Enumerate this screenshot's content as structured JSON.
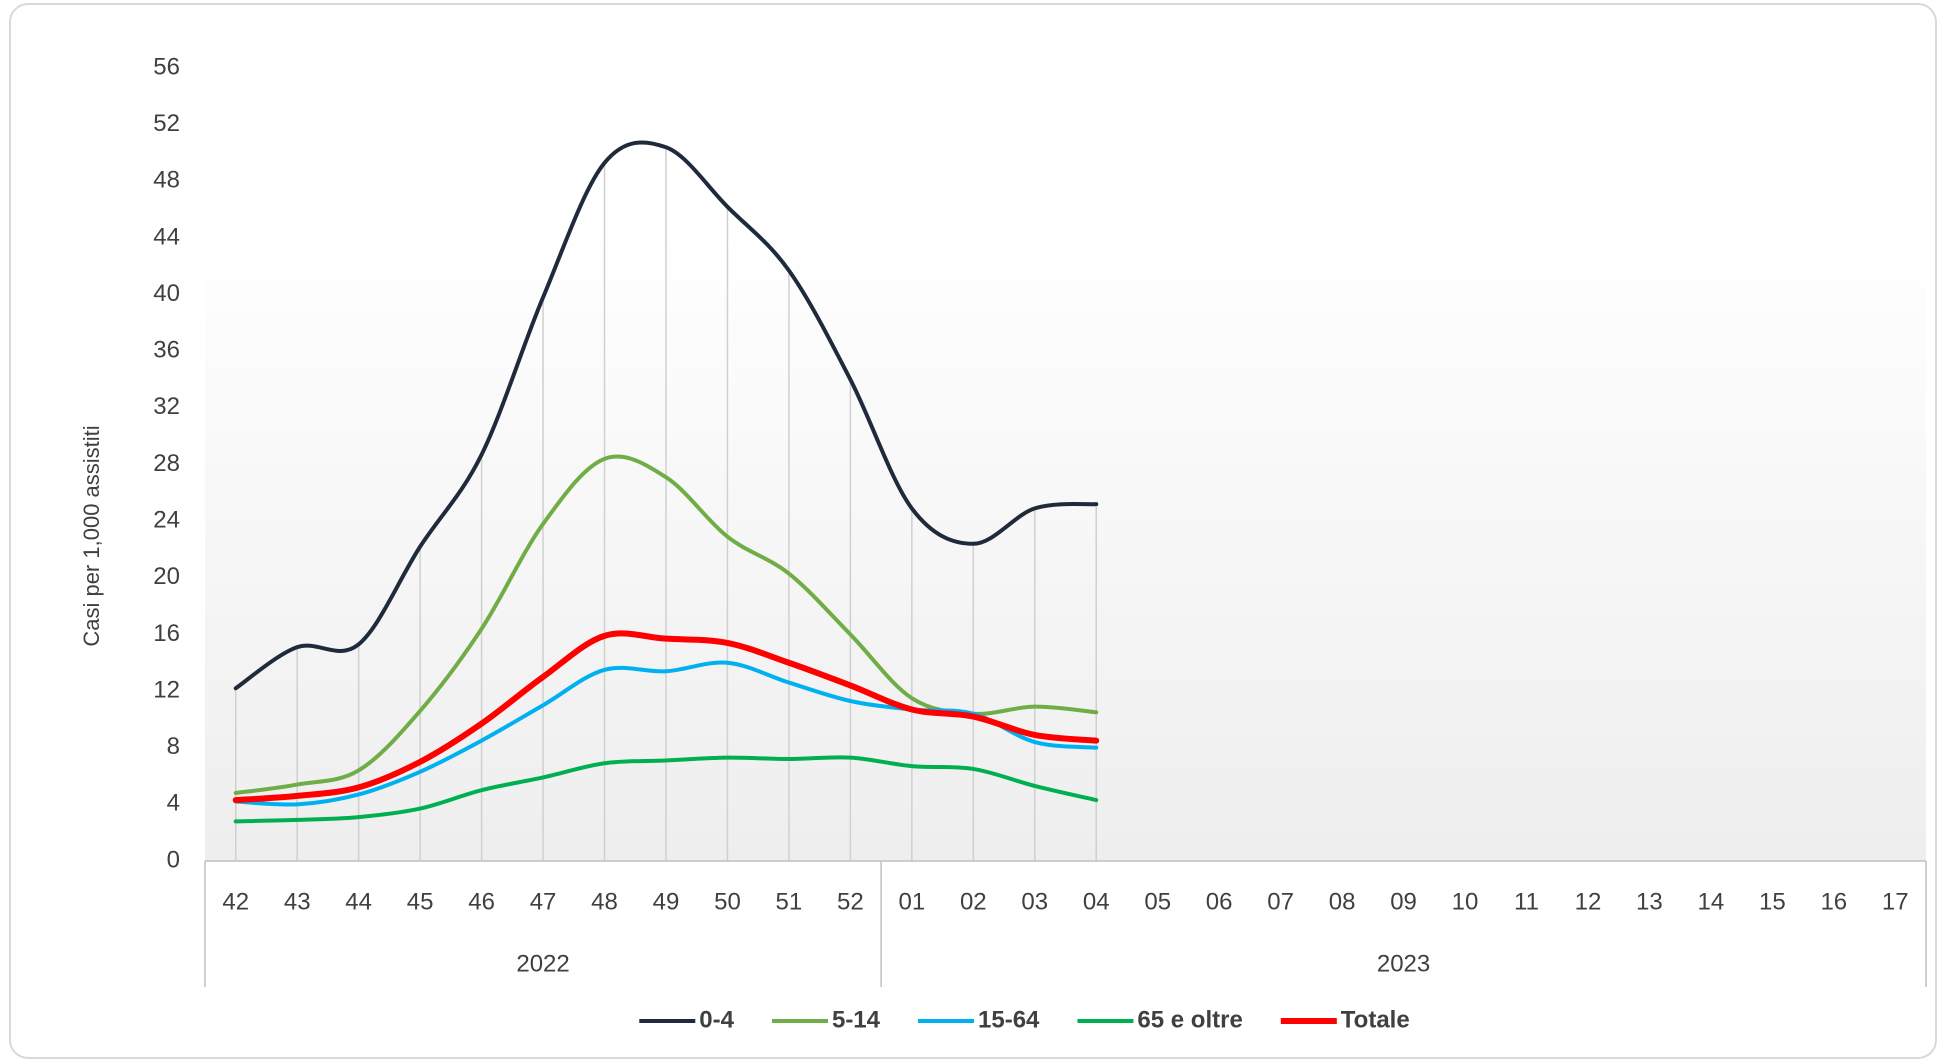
{
  "chart_data": {
    "type": "line",
    "y_label": "Casi per 1,000 assistiti",
    "categories": [
      "42",
      "43",
      "44",
      "45",
      "46",
      "47",
      "48",
      "49",
      "50",
      "51",
      "52",
      "01",
      "02",
      "03",
      "04",
      "05",
      "06",
      "07",
      "08",
      "09",
      "10",
      "11",
      "12",
      "13",
      "14",
      "15",
      "16",
      "17"
    ],
    "x_groups": [
      "2022",
      "2023"
    ],
    "ylim": [
      0,
      56
    ],
    "yticks": [
      0,
      4,
      8,
      12,
      16,
      20,
      24,
      28,
      32,
      36,
      40,
      44,
      48,
      52,
      56
    ],
    "legend": "bottom",
    "series": [
      {
        "name": "0-4",
        "color": "#1f2a3a",
        "values": [
          12.2,
          15.1,
          15.3,
          22.2,
          28.7,
          39.8,
          49.3,
          50.4,
          46.2,
          41.7,
          34.0,
          24.9,
          22.4,
          24.9,
          25.2,
          null,
          null,
          null,
          null,
          null,
          null,
          null,
          null,
          null,
          null,
          null,
          null,
          null
        ]
      },
      {
        "name": "5-14",
        "color": "#70ad47",
        "values": [
          4.8,
          5.4,
          6.4,
          10.6,
          16.4,
          23.8,
          28.4,
          27.1,
          22.9,
          20.3,
          16.0,
          11.5,
          10.4,
          10.9,
          10.5,
          null,
          null,
          null,
          null,
          null,
          null,
          null,
          null,
          null,
          null,
          null,
          null,
          null
        ]
      },
      {
        "name": "15-64",
        "color": "#00b0f0",
        "values": [
          4.2,
          4.0,
          4.7,
          6.3,
          8.5,
          11.0,
          13.5,
          13.4,
          14.0,
          12.6,
          11.3,
          10.7,
          10.4,
          8.4,
          8.0,
          null,
          null,
          null,
          null,
          null,
          null,
          null,
          null,
          null,
          null,
          null,
          null,
          null
        ]
      },
      {
        "name": "65 e oltre",
        "color": "#00b050",
        "values": [
          2.8,
          2.9,
          3.1,
          3.7,
          5.0,
          5.9,
          6.9,
          7.1,
          7.3,
          7.2,
          7.3,
          6.7,
          6.5,
          5.3,
          4.3,
          null,
          null,
          null,
          null,
          null,
          null,
          null,
          null,
          null,
          null,
          null,
          null,
          null
        ]
      },
      {
        "name": "Totale",
        "color": "#ff0000",
        "values": [
          4.3,
          4.6,
          5.2,
          7.0,
          9.7,
          13.0,
          15.9,
          15.7,
          15.4,
          14.0,
          12.4,
          10.7,
          10.2,
          8.9,
          8.5,
          null,
          null,
          null,
          null,
          null,
          null,
          null,
          null,
          null,
          null,
          null,
          null,
          null
        ]
      }
    ]
  }
}
